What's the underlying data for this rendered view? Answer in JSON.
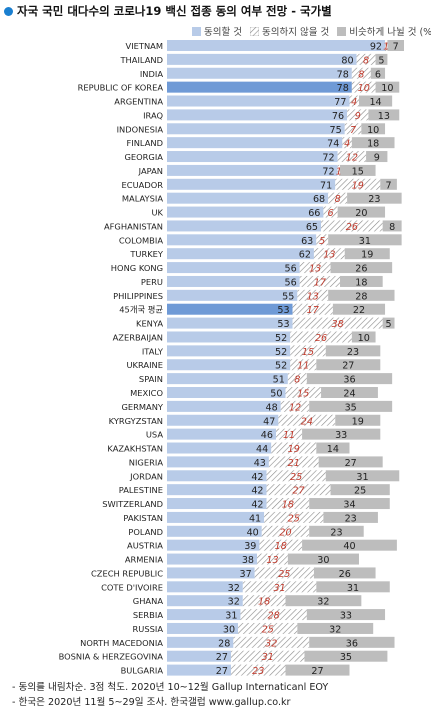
{
  "title": "자국 국민 대다수의 코로나19 백신 접종 동의 여부 전망 - 국가별",
  "legend": {
    "agree": "동의할 것",
    "disagree": "동의하지 않을 것",
    "dontknow": "비슷하게 나뉠 것 (%)"
  },
  "colors": {
    "agree": "#b8cbe8",
    "agree_highlight": "#6f9ad6",
    "disagree_hatch": "#8a8a8a",
    "disagree_text": "#c0392b",
    "dontknow": "#bdbdbd",
    "title_dot": "#1a7fd0"
  },
  "notes": [
    "- 동의를 내림차순. 3점 척도. 2020년 10~12월 Gallup Internaticanl EOY",
    "- 한국은 2020년 11월 5~29일 조사. 한국갤럽 www.gallup.co.kr"
  ],
  "chart_data": {
    "type": "bar",
    "stacked": true,
    "orientation": "horizontal",
    "series_names": [
      "동의할 것",
      "동의하지 않을 것",
      "비슷하게 나뉠 것"
    ],
    "unit": "%",
    "highlight": [
      "REPUBLIC OF KOREA",
      "45개국 평균"
    ],
    "rows": [
      {
        "label": "VIETNAM",
        "agree": 92,
        "disagree": 1,
        "dontknow": 7
      },
      {
        "label": "THAILAND",
        "agree": 80,
        "disagree": 8,
        "dontknow": 5
      },
      {
        "label": "INDIA",
        "agree": 78,
        "disagree": 8,
        "dontknow": 6
      },
      {
        "label": "REPUBLIC OF KOREA",
        "agree": 78,
        "disagree": 10,
        "dontknow": 10
      },
      {
        "label": "ARGENTINA",
        "agree": 77,
        "disagree": 4,
        "dontknow": 14
      },
      {
        "label": "IRAQ",
        "agree": 76,
        "disagree": 9,
        "dontknow": 13
      },
      {
        "label": "INDONESIA",
        "agree": 75,
        "disagree": 7,
        "dontknow": 10
      },
      {
        "label": "FINLAND",
        "agree": 74,
        "disagree": 4,
        "dontknow": 18
      },
      {
        "label": "GEORGIA",
        "agree": 72,
        "disagree": 12,
        "dontknow": 9
      },
      {
        "label": "JAPAN",
        "agree": 72,
        "disagree": 1,
        "dontknow": 15
      },
      {
        "label": "ECUADOR",
        "agree": 71,
        "disagree": 19,
        "dontknow": 7
      },
      {
        "label": "MALAYSIA",
        "agree": 68,
        "disagree": 8,
        "dontknow": 23
      },
      {
        "label": "UK",
        "agree": 66,
        "disagree": 6,
        "dontknow": 20
      },
      {
        "label": "AFGHANISTAN",
        "agree": 65,
        "disagree": 26,
        "dontknow": 8
      },
      {
        "label": "COLOMBIA",
        "agree": 63,
        "disagree": 5,
        "dontknow": 31
      },
      {
        "label": "TURKEY",
        "agree": 62,
        "disagree": 13,
        "dontknow": 19
      },
      {
        "label": "HONG KONG",
        "agree": 56,
        "disagree": 13,
        "dontknow": 26
      },
      {
        "label": "PERU",
        "agree": 56,
        "disagree": 17,
        "dontknow": 18
      },
      {
        "label": "PHILIPPINES",
        "agree": 55,
        "disagree": 13,
        "dontknow": 28
      },
      {
        "label": "45개국 평균",
        "agree": 53,
        "disagree": 17,
        "dontknow": 22
      },
      {
        "label": "KENYA",
        "agree": 53,
        "disagree": 38,
        "dontknow": 5
      },
      {
        "label": "AZERBAIJAN",
        "agree": 52,
        "disagree": 26,
        "dontknow": 10
      },
      {
        "label": "ITALY",
        "agree": 52,
        "disagree": 15,
        "dontknow": 23
      },
      {
        "label": "UKRAINE",
        "agree": 52,
        "disagree": 11,
        "dontknow": 27
      },
      {
        "label": "SPAIN",
        "agree": 51,
        "disagree": 8,
        "dontknow": 36
      },
      {
        "label": "MEXICO",
        "agree": 50,
        "disagree": 15,
        "dontknow": 24
      },
      {
        "label": "GERMANY",
        "agree": 48,
        "disagree": 12,
        "dontknow": 35
      },
      {
        "label": "KYRGYZSTAN",
        "agree": 47,
        "disagree": 24,
        "dontknow": 19
      },
      {
        "label": "USA",
        "agree": 46,
        "disagree": 11,
        "dontknow": 33
      },
      {
        "label": "KAZAKHSTAN",
        "agree": 44,
        "disagree": 19,
        "dontknow": 14
      },
      {
        "label": "NIGERIA",
        "agree": 43,
        "disagree": 21,
        "dontknow": 27
      },
      {
        "label": "JORDAN",
        "agree": 42,
        "disagree": 25,
        "dontknow": 31
      },
      {
        "label": "PALESTINE",
        "agree": 42,
        "disagree": 27,
        "dontknow": 25
      },
      {
        "label": "SWITZERLAND",
        "agree": 42,
        "disagree": 18,
        "dontknow": 34
      },
      {
        "label": "PAKISTAN",
        "agree": 41,
        "disagree": 25,
        "dontknow": 23
      },
      {
        "label": "POLAND",
        "agree": 40,
        "disagree": 20,
        "dontknow": 23
      },
      {
        "label": "AUSTRIA",
        "agree": 39,
        "disagree": 18,
        "dontknow": 40
      },
      {
        "label": "ARMENIA",
        "agree": 38,
        "disagree": 13,
        "dontknow": 30
      },
      {
        "label": "CZECH REPUBLIC",
        "agree": 37,
        "disagree": 25,
        "dontknow": 26
      },
      {
        "label": "COTE D'IVOIRE",
        "agree": 32,
        "disagree": 31,
        "dontknow": 31
      },
      {
        "label": "GHANA",
        "agree": 32,
        "disagree": 18,
        "dontknow": 32
      },
      {
        "label": "SERBIA",
        "agree": 31,
        "disagree": 28,
        "dontknow": 33
      },
      {
        "label": "RUSSIA",
        "agree": 30,
        "disagree": 25,
        "dontknow": 32
      },
      {
        "label": "NORTH MACEDONIA",
        "agree": 28,
        "disagree": 32,
        "dontknow": 36
      },
      {
        "label": "BOSNIA & HERZEGOVINA",
        "agree": 27,
        "disagree": 31,
        "dontknow": 35
      },
      {
        "label": "BULGARIA",
        "agree": 27,
        "disagree": 23,
        "dontknow": 27
      }
    ]
  }
}
